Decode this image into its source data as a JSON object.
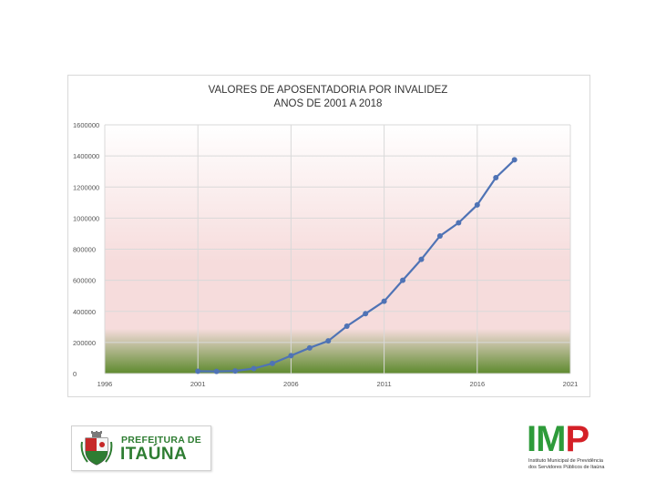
{
  "chart_data": {
    "type": "line",
    "title_lines": [
      "VALORES DE APOSENTADORIA POR INVALIDEZ",
      "ANOS DE 2001 A 2018"
    ],
    "xlabel": "",
    "ylabel": "",
    "xlim": [
      1996,
      2021
    ],
    "ylim": [
      0,
      1600000
    ],
    "x_ticks": [
      "1996",
      "2001",
      "2006",
      "2011",
      "2016",
      "2021"
    ],
    "x_tick_values": [
      1996,
      2001,
      2006,
      2011,
      2016,
      2021
    ],
    "y_ticks": [
      "0",
      "200000",
      "400000",
      "600000",
      "800000",
      "1000000",
      "1200000",
      "1400000",
      "1600000"
    ],
    "y_tick_values": [
      0,
      200000,
      400000,
      600000,
      800000,
      1000000,
      1200000,
      1400000,
      1600000
    ],
    "grid": true,
    "legend": "none",
    "series": [
      {
        "x": [
          2001,
          2002,
          2003,
          2004,
          2005,
          2006,
          2007,
          2008,
          2009,
          2010,
          2011,
          2012,
          2013,
          2014,
          2015,
          2016,
          2017,
          2018
        ],
        "values": [
          15000,
          14000,
          17000,
          32000,
          65000,
          115000,
          165000,
          210000,
          305000,
          385000,
          465000,
          600000,
          735000,
          885000,
          970000,
          1085000,
          1260000,
          1375000
        ]
      }
    ]
  },
  "colors": {
    "line": "#4f73b5",
    "marker": "#4f73b5",
    "grid": "#d9d9d9",
    "plot_bg_top": "#ffffff",
    "plot_bg_mid": "#f6dcdc",
    "plot_bg_bottom": "#5e8a2e"
  },
  "logos": {
    "left_line1": "PREFEITURA DE",
    "left_line2": "ITAÚNA",
    "right_letters": [
      "I",
      "M",
      "P"
    ],
    "right_subtitle_line1": "Instituto Municipal de Previdência",
    "right_subtitle_line2": "dos Servidores Públicos de Itaúna"
  }
}
